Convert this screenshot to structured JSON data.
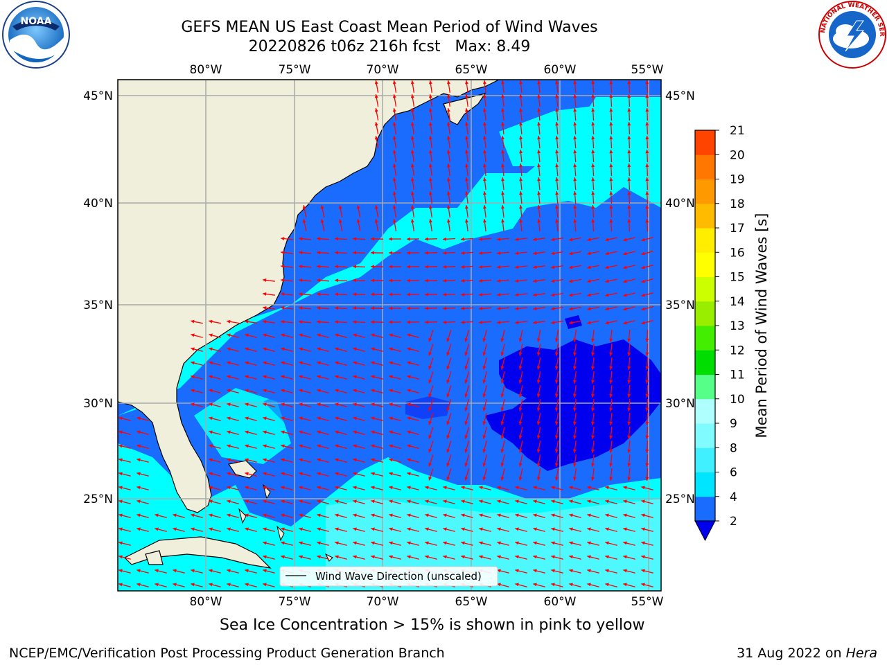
{
  "title": {
    "line1": "GEFS MEAN US East Coast Mean Period of Wind Waves",
    "line2": "20220826 t06z 216h fcst   Max: 8.49"
  },
  "axes": {
    "lon_ticks": [
      "80°W",
      "75°W",
      "70°W",
      "65°W",
      "60°W",
      "55°W"
    ],
    "lat_ticks": [
      "45°N",
      "40°N",
      "35°N",
      "30°N",
      "25°N"
    ]
  },
  "legend": {
    "label": "Wind Wave Direction (unscaled)"
  },
  "colorbar": {
    "label": "Mean Period of Wind Waves [s]",
    "ticks": [
      "2",
      "4",
      "6",
      "8",
      "9",
      "10",
      "11",
      "12",
      "13",
      "14",
      "15",
      "16",
      "17",
      "18",
      "19",
      "20",
      "21"
    ],
    "colors": [
      "#1a6cff",
      "#00e5ff",
      "#40f0ff",
      "#80fbff",
      "#b0ffff",
      "#55ff88",
      "#00dd00",
      "#44ee00",
      "#99ee00",
      "#ccff00",
      "#ffff00",
      "#ffee00",
      "#ffbb00",
      "#ff9900",
      "#ff7700",
      "#ff4400",
      "#ff1100"
    ],
    "extend_color": "#0000ee"
  },
  "caption": "Sea Ice Concentration > 15% is shown in pink to yellow",
  "footer": {
    "left": "NCEP/EMC/Verification Post Processing Product Generation Branch",
    "right_prefix": "31 Aug 2022 on ",
    "right_italic": "Hera"
  },
  "colors": {
    "land": "#efefdc",
    "ocean_dark": "#1a6cff",
    "ocean_light": "#00ffff",
    "ocean_deep": "#0000ee",
    "arrow": "#ff0000",
    "grid": "#aaaaaa"
  },
  "logos": {
    "left": "NOAA",
    "right": "NATIONAL WEATHER SERVICE"
  }
}
